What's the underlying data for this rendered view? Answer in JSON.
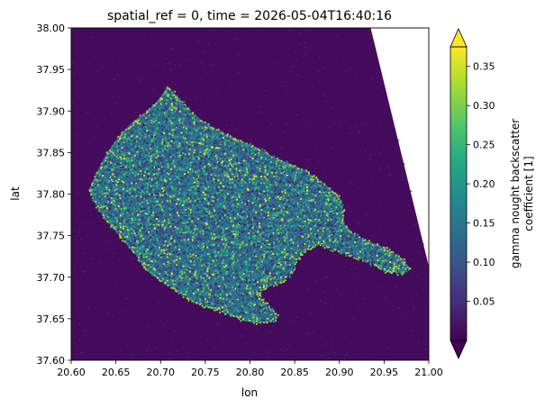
{
  "chart_data": {
    "type": "heatmap",
    "title": "spatial_ref = 0, time = 2026-05-04T16:40:16",
    "xlabel": "lon",
    "ylabel": "lat",
    "xlim": [
      20.6,
      21.0
    ],
    "ylim": [
      37.6,
      38.0
    ],
    "x_ticks": [
      "20.60",
      "20.65",
      "20.70",
      "20.75",
      "20.80",
      "20.85",
      "20.90",
      "20.95",
      "21.00"
    ],
    "y_ticks": [
      "37.60",
      "37.65",
      "37.70",
      "37.75",
      "37.80",
      "37.85",
      "37.90",
      "37.95",
      "38.00"
    ],
    "colorbar": {
      "label_line1": "gamma nought backscatter",
      "label_line2": "coefficient [1]",
      "range": [
        0.0,
        0.375
      ],
      "ticks": [
        "0.05",
        "0.10",
        "0.15",
        "0.20",
        "0.25",
        "0.30",
        "0.35"
      ],
      "extend": "both",
      "colormap": "viridis"
    },
    "swath_edge_lon_at_top": 20.935,
    "swath_edge_lon_at_bottom": 21.0,
    "swath_edge_lat_at_bottom": 37.713,
    "land_outline_lonlat": [
      [
        20.62,
        37.805
      ],
      [
        20.628,
        37.825
      ],
      [
        20.64,
        37.85
      ],
      [
        20.655,
        37.872
      ],
      [
        20.67,
        37.888
      ],
      [
        20.685,
        37.9
      ],
      [
        20.698,
        37.914
      ],
      [
        20.708,
        37.93
      ],
      [
        20.718,
        37.918
      ],
      [
        20.735,
        37.898
      ],
      [
        20.752,
        37.884
      ],
      [
        20.77,
        37.874
      ],
      [
        20.79,
        37.864
      ],
      [
        20.808,
        37.856
      ],
      [
        20.826,
        37.845
      ],
      [
        20.846,
        37.836
      ],
      [
        20.862,
        37.828
      ],
      [
        20.876,
        37.818
      ],
      [
        20.888,
        37.808
      ],
      [
        20.9,
        37.795
      ],
      [
        20.904,
        37.78
      ],
      [
        20.903,
        37.765
      ],
      [
        20.916,
        37.752
      ],
      [
        20.935,
        37.742
      ],
      [
        20.952,
        37.735
      ],
      [
        20.968,
        37.724
      ],
      [
        20.978,
        37.712
      ],
      [
        20.968,
        37.705
      ],
      [
        20.95,
        37.708
      ],
      [
        20.93,
        37.72
      ],
      [
        20.91,
        37.727
      ],
      [
        20.892,
        37.734
      ],
      [
        20.875,
        37.74
      ],
      [
        20.862,
        37.733
      ],
      [
        20.852,
        37.722
      ],
      [
        20.846,
        37.706
      ],
      [
        20.835,
        37.695
      ],
      [
        20.818,
        37.689
      ],
      [
        20.808,
        37.681
      ],
      [
        20.818,
        37.668
      ],
      [
        20.83,
        37.655
      ],
      [
        20.826,
        37.648
      ],
      [
        20.808,
        37.646
      ],
      [
        20.79,
        37.65
      ],
      [
        20.772,
        37.658
      ],
      [
        20.752,
        37.664
      ],
      [
        20.735,
        37.672
      ],
      [
        20.72,
        37.682
      ],
      [
        20.706,
        37.692
      ],
      [
        20.692,
        37.702
      ],
      [
        20.682,
        37.712
      ],
      [
        20.67,
        37.73
      ],
      [
        20.655,
        37.748
      ],
      [
        20.64,
        37.768
      ],
      [
        20.628,
        37.786
      ]
    ],
    "value_levels": {
      "sea": 0.012,
      "land": 0.14,
      "coast_bright": 0.33
    },
    "colors": {
      "nodata": "#ffffff",
      "axis": "#000000"
    }
  }
}
